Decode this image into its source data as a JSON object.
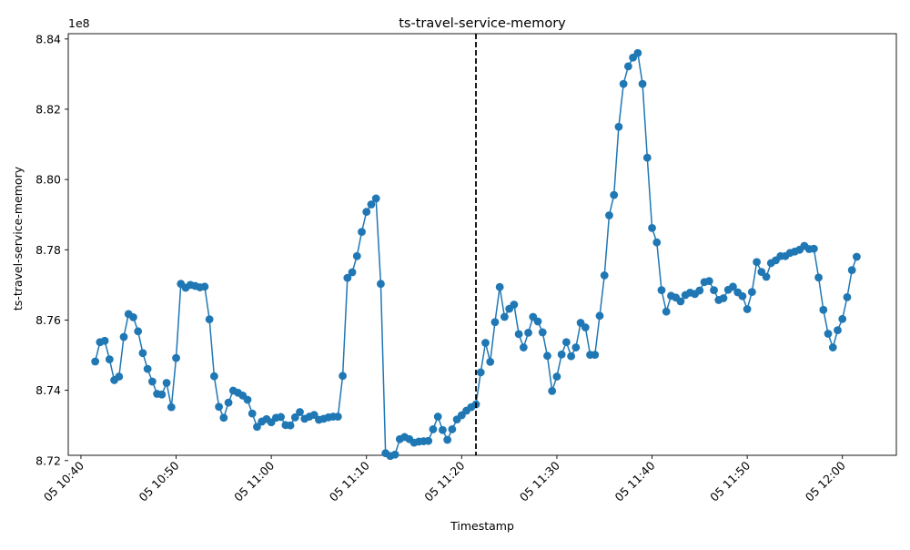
{
  "chart_data": {
    "type": "line",
    "title": "ts-travel-service-memory",
    "xlabel": "Timestamp",
    "ylabel": "ts-travel-service-memory",
    "y_offset_label": "1e8",
    "y_scale": 100000000,
    "ylim": [
      8.7215,
      8.8415
    ],
    "y_ticks": [
      8.72,
      8.74,
      8.76,
      8.78,
      8.8,
      8.82,
      8.84
    ],
    "y_tick_labels": [
      "8.72",
      "8.74",
      "8.76",
      "8.78",
      "8.80",
      "8.82",
      "8.84"
    ],
    "xlim": [
      "05 10:38:40",
      "05 12:05:40"
    ],
    "x_ticks": [
      "05 10:40",
      "05 10:50",
      "05 11:00",
      "05 11:10",
      "05 11:20",
      "05 11:30",
      "05 11:40",
      "05 11:50",
      "05 12:00"
    ],
    "x_tick_labels": [
      "05 10:40",
      "05 10:50",
      "05 11:00",
      "05 11:10",
      "05 11:20",
      "05 11:30",
      "05 11:40",
      "05 11:50",
      "05 12:00"
    ],
    "vline_x": "05 11:21:30",
    "vline_style": "dashed",
    "grid": false,
    "line_color": "#1f77b4",
    "marker": "circle",
    "series": [
      {
        "x": [
          "05 10:41:30",
          "05 10:42:00",
          "05 10:42:30",
          "05 10:43:00",
          "05 10:43:30",
          "05 10:44:00",
          "05 10:44:30",
          "05 10:45:00",
          "05 10:45:30",
          "05 10:46:00",
          "05 10:46:30",
          "05 10:47:00",
          "05 10:47:30",
          "05 10:48:00",
          "05 10:48:30",
          "05 10:49:00",
          "05 10:49:30",
          "05 10:50:00",
          "05 10:50:30",
          "05 10:51:00",
          "05 10:51:30",
          "05 10:52:00",
          "05 10:52:30",
          "05 10:53:00",
          "05 10:53:30",
          "05 10:54:00",
          "05 10:54:30",
          "05 10:55:00",
          "05 10:55:30",
          "05 10:56:00",
          "05 10:56:30",
          "05 10:57:00",
          "05 10:57:30",
          "05 10:58:00",
          "05 10:58:30",
          "05 10:59:00",
          "05 10:59:30",
          "05 11:00:00",
          "05 11:00:30",
          "05 11:01:00",
          "05 11:01:30",
          "05 11:02:00",
          "05 11:02:30",
          "05 11:03:00",
          "05 11:03:30",
          "05 11:04:00",
          "05 11:04:30",
          "05 11:05:00",
          "05 11:05:30",
          "05 11:06:00",
          "05 11:06:30",
          "05 11:07:00",
          "05 11:07:30",
          "05 11:08:00",
          "05 11:08:30",
          "05 11:09:00",
          "05 11:09:30",
          "05 11:10:00",
          "05 11:10:30",
          "05 11:11:00",
          "05 11:11:30",
          "05 11:12:00",
          "05 11:12:30",
          "05 11:13:00",
          "05 11:13:30",
          "05 11:14:00",
          "05 11:14:30",
          "05 11:15:00",
          "05 11:15:30",
          "05 11:16:00",
          "05 11:16:30",
          "05 11:17:00",
          "05 11:17:30",
          "05 11:18:00",
          "05 11:18:30",
          "05 11:19:00",
          "05 11:19:30",
          "05 11:20:00",
          "05 11:20:30",
          "05 11:21:00",
          "05 11:21:30",
          "05 11:22:00",
          "05 11:22:30",
          "05 11:23:00",
          "05 11:23:30",
          "05 11:24:00",
          "05 11:24:30",
          "05 11:25:00",
          "05 11:25:30",
          "05 11:26:00",
          "05 11:26:30",
          "05 11:27:00",
          "05 11:27:30",
          "05 11:28:00",
          "05 11:28:30",
          "05 11:29:00",
          "05 11:29:30",
          "05 11:30:00",
          "05 11:30:30",
          "05 11:31:00",
          "05 11:31:30",
          "05 11:32:00",
          "05 11:32:30",
          "05 11:33:00",
          "05 11:33:30",
          "05 11:34:00",
          "05 11:34:30",
          "05 11:35:00",
          "05 11:35:30",
          "05 11:36:00",
          "05 11:36:30",
          "05 11:37:00",
          "05 11:37:30",
          "05 11:38:00",
          "05 11:38:30",
          "05 11:39:00",
          "05 11:39:30",
          "05 11:40:00",
          "05 11:40:30",
          "05 11:41:00",
          "05 11:41:30",
          "05 11:42:00",
          "05 11:42:30",
          "05 11:43:00",
          "05 11:43:30",
          "05 11:44:00",
          "05 11:44:30",
          "05 11:45:00",
          "05 11:45:30",
          "05 11:46:00",
          "05 11:46:30",
          "05 11:47:00",
          "05 11:47:30",
          "05 11:48:00",
          "05 11:48:30",
          "05 11:49:00",
          "05 11:49:30",
          "05 11:50:00",
          "05 11:50:30",
          "05 11:51:00",
          "05 11:51:30",
          "05 11:52:00",
          "05 11:52:30",
          "05 11:53:00",
          "05 11:53:30",
          "05 11:54:00",
          "05 11:54:30",
          "05 11:55:00",
          "05 11:55:30",
          "05 11:56:00",
          "05 11:56:30",
          "05 11:57:00",
          "05 11:57:30",
          "05 11:58:00",
          "05 11:58:30",
          "05 11:59:00",
          "05 11:59:30",
          "05 12:00:00",
          "05 12:00:30",
          "05 12:01:00",
          "05 12:01:30"
        ],
        "values": [
          8.7482,
          8.7537,
          8.7541,
          8.7488,
          8.7429,
          8.7439,
          8.7552,
          8.7617,
          8.7608,
          8.7568,
          8.7506,
          8.7461,
          8.7425,
          8.739,
          8.7388,
          8.7421,
          8.7352,
          8.7492,
          8.7703,
          8.7692,
          8.77,
          8.7697,
          8.7693,
          8.7695,
          8.7602,
          8.744,
          8.7353,
          8.7322,
          8.7365,
          8.7399,
          8.7393,
          8.7385,
          8.7373,
          8.7334,
          8.7296,
          8.7311,
          8.7318,
          8.7309,
          8.7322,
          8.7324,
          8.7301,
          8.73,
          8.7323,
          8.7338,
          8.7319,
          8.7325,
          8.733,
          8.7316,
          8.7319,
          8.7323,
          8.7325,
          8.7325,
          8.7441,
          8.772,
          8.7736,
          8.7782,
          8.7851,
          8.7908,
          8.7929,
          8.7946,
          8.7703,
          8.7221,
          8.7213,
          8.7217,
          8.7261,
          8.7267,
          8.7261,
          8.7251,
          8.7254,
          8.7255,
          8.7256,
          8.7289,
          8.7325,
          8.7287,
          8.7259,
          8.7289,
          8.7317,
          8.7329,
          8.7342,
          8.7352,
          8.736,
          8.7451,
          8.7535,
          8.7481,
          8.7594,
          8.7694,
          8.7609,
          8.7632,
          8.7644,
          8.756,
          8.7522,
          8.7564,
          8.7609,
          8.7596,
          8.7565,
          8.7498,
          8.7398,
          8.7439,
          8.7502,
          8.7537,
          8.7497,
          8.7522,
          8.7592,
          8.7579,
          8.7501,
          8.7501,
          8.7612,
          8.7727,
          8.7898,
          8.7956,
          8.815,
          8.8272,
          8.8322,
          8.8347,
          8.836,
          8.8272,
          8.8062,
          8.7862,
          8.7821,
          8.7685,
          8.7624,
          8.7669,
          8.7664,
          8.7653,
          8.7671,
          8.7678,
          8.7674,
          8.7684,
          8.7708,
          8.7711,
          8.7685,
          8.7657,
          8.7662,
          8.7686,
          8.7695,
          8.7679,
          8.7668,
          8.7631,
          8.768,
          8.7765,
          8.7737,
          8.7723,
          8.7762,
          8.777,
          8.7782,
          8.7782,
          8.7791,
          8.7795,
          8.78,
          8.7811,
          8.7802,
          8.7803,
          8.7721,
          8.7629,
          8.7561,
          8.7522,
          8.7571,
          8.7603,
          8.7665,
          8.7742,
          8.778
        ]
      }
    ]
  }
}
